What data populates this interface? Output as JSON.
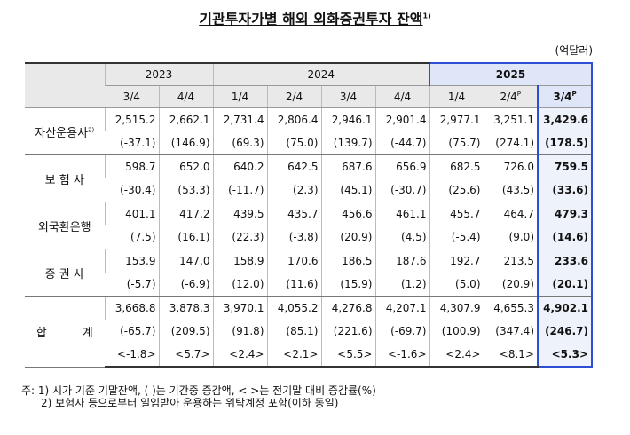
{
  "header": {
    "title": "기관투자가별 해외 외화증권투자 잔액",
    "title_note": "1)",
    "unit": "(억달러)"
  },
  "table": {
    "years": [
      "2023",
      "2024",
      "2025"
    ],
    "quarters": [
      {
        "label": "3/4"
      },
      {
        "label": "4/4"
      },
      {
        "label": "1/4"
      },
      {
        "label": "2/4"
      },
      {
        "label": "3/4"
      },
      {
        "label": "4/4"
      },
      {
        "label": "1/4"
      },
      {
        "label": "2/4",
        "sup": "P"
      },
      {
        "label": "3/4",
        "sup": "P"
      }
    ],
    "rows": [
      {
        "label": "자산운용사",
        "note": "2)",
        "lines": [
          [
            "2,515.2",
            "2,662.1",
            "2,731.4",
            "2,806.4",
            "2,946.1",
            "2,901.4",
            "2,977.1",
            "3,251.1",
            "3,429.6"
          ],
          [
            "(-37.1)",
            "(146.9)",
            "(69.3)",
            "(75.0)",
            "(139.7)",
            "(-44.7)",
            "(75.7)",
            "(274.1)",
            "(178.5)"
          ]
        ]
      },
      {
        "label": "보 험 사",
        "lines": [
          [
            "598.7",
            "652.0",
            "640.2",
            "642.5",
            "687.6",
            "656.9",
            "682.5",
            "726.0",
            "759.5"
          ],
          [
            "(-30.4)",
            "(53.3)",
            "(-11.7)",
            "(2.3)",
            "(45.1)",
            "(-30.7)",
            "(25.6)",
            "(43.5)",
            "(33.6)"
          ]
        ]
      },
      {
        "label": "외국환은행",
        "lines": [
          [
            "401.1",
            "417.2",
            "439.5",
            "435.7",
            "456.6",
            "461.1",
            "455.7",
            "464.7",
            "479.3"
          ],
          [
            "(7.5)",
            "(16.1)",
            "(22.3)",
            "(-3.8)",
            "(20.9)",
            "(4.5)",
            "(-5.4)",
            "(9.0)",
            "(14.6)"
          ]
        ]
      },
      {
        "label": "증 권 사",
        "lines": [
          [
            "153.9",
            "147.0",
            "158.9",
            "170.6",
            "186.5",
            "187.6",
            "192.7",
            "213.5",
            "233.6"
          ],
          [
            "(-5.7)",
            "(-6.9)",
            "(12.0)",
            "(11.6)",
            "(15.9)",
            "(1.2)",
            "(5.0)",
            "(20.9)",
            "(20.1)"
          ]
        ]
      },
      {
        "label": "합 계",
        "lines": [
          [
            "3,668.8",
            "3,878.3",
            "3,970.1",
            "4,055.2",
            "4,276.8",
            "4,207.1",
            "4,307.9",
            "4,655.3",
            "4,902.1"
          ],
          [
            "(-65.7)",
            "(209.5)",
            "(91.8)",
            "(85.1)",
            "(221.6)",
            "(-69.7)",
            "(100.9)",
            "(347.4)",
            "(246.7)"
          ],
          [
            "<-1.8>",
            "<5.7>",
            "<2.4>",
            "<2.1>",
            "<5.5>",
            "<-1.6>",
            "<2.4>",
            "<8.1>",
            "<5.3>"
          ]
        ]
      }
    ]
  },
  "notes": [
    "주: 1) 시가 기준 기말잔액, ( )는 기간중 증감액, < >는 전기말 대비 증감률(%)",
    "2) 보험사 등으로부터 일임받아 운용하는 위탁계정 포함(이하 동일)"
  ]
}
